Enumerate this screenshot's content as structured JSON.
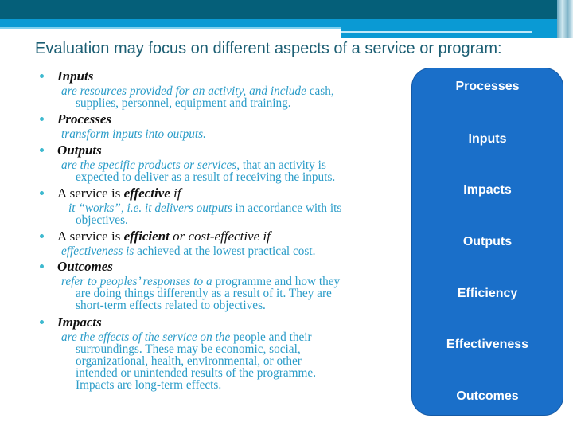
{
  "title": "Evaluation may focus on different aspects of a service or program:",
  "items": [
    {
      "name": "inputs",
      "head": [
        {
          "t": "Inputs",
          "s": "b"
        }
      ],
      "lines": [
        [
          {
            "t": "are resources provided for an activity, and include ",
            "s": "i"
          },
          {
            "t": "cash,",
            "s": "r"
          }
        ],
        [
          {
            "t": "supplies, personnel, equipment and training.",
            "s": "r"
          }
        ]
      ]
    },
    {
      "name": "processes",
      "head": [
        {
          "t": "Processes",
          "s": "b"
        }
      ],
      "lines": [
        [
          {
            "t": "transform inputs into outputs.",
            "s": "i"
          }
        ]
      ]
    },
    {
      "name": "outputs",
      "head": [
        {
          "t": "Outputs",
          "s": "b"
        }
      ],
      "lines": [
        [
          {
            "t": "are the specific products or services, ",
            "s": "i"
          },
          {
            "t": "that an activity is",
            "s": "r"
          }
        ],
        [
          {
            "t": "expected to deliver as a result of receiving the inputs.",
            "s": "r"
          }
        ]
      ]
    },
    {
      "name": "effective",
      "head": [
        {
          "t": "A service is ",
          "s": "r"
        },
        {
          "t": "effective",
          "s": "b"
        },
        {
          "t": " if",
          "s": "i"
        }
      ],
      "lines": [
        [
          {
            "t": "it “works”, i.e. it delivers outputs ",
            "s": "i"
          },
          {
            "t": "in accordance with its",
            "s": "r"
          }
        ],
        [
          {
            "t": "objectives.",
            "s": "r"
          }
        ]
      ]
    },
    {
      "name": "efficient",
      "head": [
        {
          "t": "A service is ",
          "s": "r"
        },
        {
          "t": "efficient",
          "s": "b"
        },
        {
          "t": " or cost-effective if",
          "s": "i"
        }
      ],
      "lines": [
        [
          {
            "t": "effectiveness is ",
            "s": "i"
          },
          {
            "t": "achieved at the lowest practical cost.",
            "s": "r"
          }
        ]
      ]
    },
    {
      "name": "outcomes",
      "head": [
        {
          "t": "Outcomes",
          "s": "b"
        }
      ],
      "lines": [
        [
          {
            "t": "refer to peoples’ responses to a ",
            "s": "i"
          },
          {
            "t": "programme and how they",
            "s": "r"
          }
        ],
        [
          {
            "t": "are doing things differently as a result of it. They are",
            "s": "r"
          }
        ],
        [
          {
            "t": "short-term effects related to objectives.",
            "s": "r"
          }
        ]
      ]
    },
    {
      "name": "impacts",
      "head": [
        {
          "t": "Impacts",
          "s": "b"
        }
      ],
      "lines": [
        [
          {
            "t": "are the effects of the service on the ",
            "s": "i"
          },
          {
            "t": "people and their",
            "s": "r"
          }
        ],
        [
          {
            "t": "surroundings. These may be economic, social,",
            "s": "r"
          }
        ],
        [
          {
            "t": "organizational, health, environmental,  or other",
            "s": "r"
          }
        ],
        [
          {
            "t": "intended or unintended results of the programme.",
            "s": "r"
          }
        ],
        [
          {
            "t": "Impacts are long-term effects.",
            "s": "r"
          }
        ]
      ]
    }
  ],
  "box": {
    "color": "#1a6fc9",
    "labels": [
      "Processes",
      "Inputs",
      "Impacts",
      "Outputs",
      "Efficiency",
      "Effectiveness",
      "Outcomes"
    ]
  }
}
